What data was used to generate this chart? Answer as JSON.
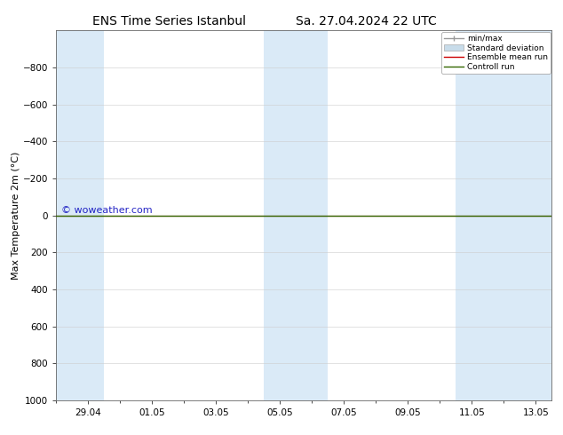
{
  "title_left": "ENS Time Series Istanbul",
  "title_right": "Sa. 27.04.2024 22 UTC",
  "ylabel": "Max Temperature 2m (°C)",
  "ylim_bottom": 1000,
  "ylim_top": -1000,
  "yticks": [
    -800,
    -600,
    -400,
    -200,
    0,
    200,
    400,
    600,
    800,
    1000
  ],
  "background_color": "#ffffff",
  "plot_bg_color": "#ffffff",
  "shaded_band_color": "#daeaf7",
  "legend_entries": [
    "min/max",
    "Standard deviation",
    "Ensemble mean run",
    "Controll run"
  ],
  "legend_colors_line": [
    "#aaaaaa",
    "#c8d8e8",
    "#cc0000",
    "#336600"
  ],
  "watermark": "© woweather.com",
  "watermark_color": "#0000bb",
  "watermark_fontsize": 8,
  "title_fontsize": 10,
  "axis_fontsize": 7.5,
  "ylabel_fontsize": 8,
  "line_y": 0,
  "x_tick_labels": [
    "29.04",
    "01.05",
    "03.05",
    "05.05",
    "07.05",
    "09.05",
    "11.05",
    "13.05"
  ],
  "x_tick_positions": [
    1,
    3,
    5,
    7,
    9,
    11,
    13,
    15
  ],
  "band_ranges": [
    [
      0,
      1.5
    ],
    [
      6.5,
      8.5
    ],
    [
      12.5,
      15.5
    ]
  ],
  "xlim": [
    0,
    15.5
  ]
}
